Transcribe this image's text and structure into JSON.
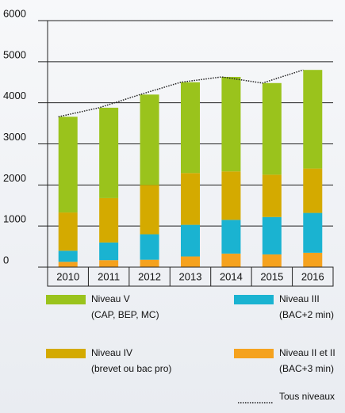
{
  "chart_data": {
    "type": "bar",
    "stacked": true,
    "categories": [
      "2010",
      "2011",
      "2012",
      "2013",
      "2014",
      "2015",
      "2016"
    ],
    "series": [
      {
        "name": "Niveau II et II",
        "description": "(BAC+3 min)",
        "color": "#f5a21e",
        "values": [
          130,
          170,
          180,
          260,
          330,
          310,
          350
        ]
      },
      {
        "name": "Niveau III",
        "description": "(BAC+2 min)",
        "color": "#1ab3d1",
        "values": [
          270,
          430,
          620,
          770,
          820,
          910,
          970
        ]
      },
      {
        "name": "Niveau IV",
        "description": "(brevet ou bac pro)",
        "color": "#d4aa00",
        "values": [
          930,
          1080,
          1200,
          1260,
          1180,
          1030,
          1080
        ]
      },
      {
        "name": "Niveau V",
        "description": "(CAP, BEP, MC)",
        "color": "#9ac31c",
        "values": [
          2330,
          2200,
          2200,
          2210,
          2300,
          2230,
          2400
        ]
      },
      {
        "name": "Tous niveaux",
        "type": "line",
        "dotted": true,
        "color": "#222222",
        "values": [
          3660,
          3880,
          4200,
          4500,
          4630,
          4480,
          4800
        ]
      }
    ],
    "ylim": [
      0,
      6000
    ],
    "yticks": [
      0,
      1000,
      2000,
      3000,
      4000,
      5000,
      6000
    ],
    "grid": true
  }
}
